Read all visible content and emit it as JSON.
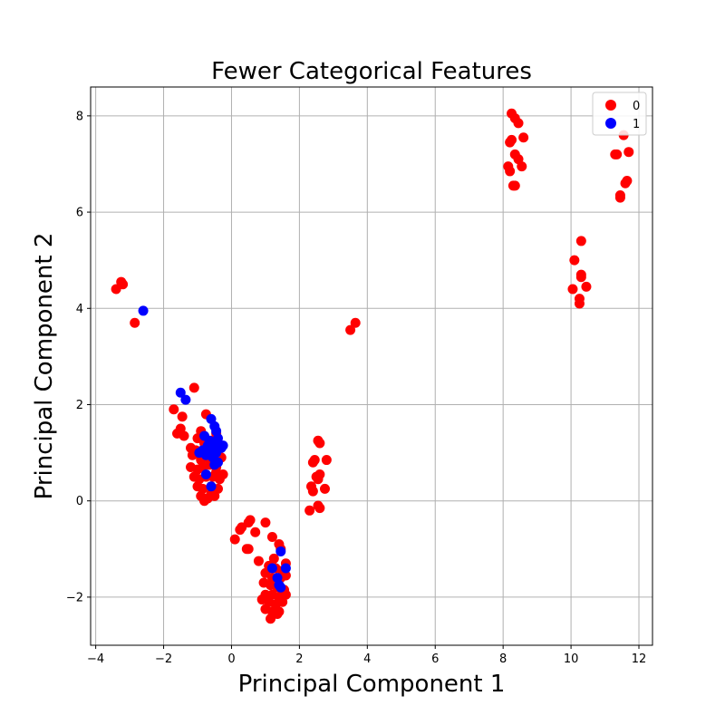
{
  "chart_data": {
    "type": "scatter",
    "title": "Fewer Categorical Features",
    "xlabel": "Principal Component 1",
    "ylabel": "Principal Component 2",
    "xlim": [
      -4.15,
      12.4
    ],
    "ylim": [
      -3.0,
      8.6
    ],
    "xticks": [
      -4,
      -2,
      0,
      2,
      4,
      6,
      8,
      10,
      12
    ],
    "yticks": [
      -2,
      0,
      2,
      4,
      6,
      8
    ],
    "xtick_labels": [
      "−4",
      "−2",
      "0",
      "2",
      "4",
      "6",
      "8",
      "10",
      "12"
    ],
    "ytick_labels": [
      "−2",
      "0",
      "2",
      "4",
      "6",
      "8"
    ],
    "grid": true,
    "legend_position": "top-right",
    "series": [
      {
        "name": "0",
        "color": "#ff0000",
        "points": [
          [
            -3.4,
            4.4
          ],
          [
            -3.25,
            4.55
          ],
          [
            -3.2,
            4.5
          ],
          [
            -2.85,
            3.7
          ],
          [
            3.5,
            3.55
          ],
          [
            3.65,
            3.7
          ],
          [
            8.25,
            8.05
          ],
          [
            8.35,
            7.95
          ],
          [
            8.45,
            7.85
          ],
          [
            8.6,
            7.55
          ],
          [
            8.25,
            7.5
          ],
          [
            8.2,
            7.45
          ],
          [
            8.35,
            7.2
          ],
          [
            8.45,
            7.1
          ],
          [
            8.15,
            6.95
          ],
          [
            8.2,
            6.85
          ],
          [
            8.55,
            6.95
          ],
          [
            8.3,
            6.55
          ],
          [
            8.35,
            6.55
          ],
          [
            11.55,
            7.6
          ],
          [
            11.7,
            7.25
          ],
          [
            11.3,
            7.2
          ],
          [
            11.35,
            7.2
          ],
          [
            11.65,
            6.65
          ],
          [
            11.6,
            6.6
          ],
          [
            11.45,
            6.35
          ],
          [
            11.45,
            6.3
          ],
          [
            10.3,
            5.4
          ],
          [
            10.1,
            5.0
          ],
          [
            10.3,
            4.7
          ],
          [
            10.3,
            4.65
          ],
          [
            10.45,
            4.45
          ],
          [
            10.05,
            4.4
          ],
          [
            10.25,
            4.2
          ],
          [
            10.25,
            4.1
          ],
          [
            -1.1,
            2.35
          ],
          [
            -1.7,
            1.9
          ],
          [
            -1.45,
            1.75
          ],
          [
            -1.5,
            1.5
          ],
          [
            -1.6,
            1.4
          ],
          [
            -1.4,
            1.35
          ],
          [
            -0.75,
            1.8
          ],
          [
            -0.9,
            1.45
          ],
          [
            -1.0,
            1.3
          ],
          [
            -1.2,
            1.1
          ],
          [
            -1.05,
            1.05
          ],
          [
            -0.8,
            1.2
          ],
          [
            -0.6,
            1.25
          ],
          [
            -0.45,
            1.4
          ],
          [
            -0.3,
            1.15
          ],
          [
            -1.15,
            0.95
          ],
          [
            -0.9,
            0.85
          ],
          [
            -0.7,
            0.9
          ],
          [
            -0.5,
            0.95
          ],
          [
            -0.3,
            0.9
          ],
          [
            -1.2,
            0.7
          ],
          [
            -1.0,
            0.65
          ],
          [
            -0.85,
            0.7
          ],
          [
            -0.65,
            0.75
          ],
          [
            -0.45,
            0.7
          ],
          [
            -0.25,
            0.55
          ],
          [
            -1.1,
            0.5
          ],
          [
            -0.95,
            0.45
          ],
          [
            -0.75,
            0.5
          ],
          [
            -0.55,
            0.5
          ],
          [
            -0.35,
            0.45
          ],
          [
            -1.0,
            0.3
          ],
          [
            -0.85,
            0.25
          ],
          [
            -0.6,
            0.3
          ],
          [
            -0.4,
            0.25
          ],
          [
            -0.9,
            0.1
          ],
          [
            -0.7,
            0.05
          ],
          [
            -0.5,
            0.1
          ],
          [
            -0.8,
            0.0
          ],
          [
            -0.6,
            0.15
          ],
          [
            -0.45,
            0.6
          ],
          [
            -0.7,
            1.05
          ],
          [
            2.55,
            1.25
          ],
          [
            2.6,
            1.2
          ],
          [
            2.4,
            0.8
          ],
          [
            2.45,
            0.85
          ],
          [
            2.8,
            0.85
          ],
          [
            2.6,
            0.55
          ],
          [
            2.5,
            0.5
          ],
          [
            2.55,
            0.45
          ],
          [
            2.35,
            0.3
          ],
          [
            2.75,
            0.25
          ],
          [
            2.4,
            0.2
          ],
          [
            2.55,
            -0.1
          ],
          [
            2.6,
            -0.15
          ],
          [
            2.3,
            -0.2
          ],
          [
            0.55,
            -0.4
          ],
          [
            0.5,
            -0.45
          ],
          [
            1.0,
            -0.45
          ],
          [
            0.25,
            -0.6
          ],
          [
            0.3,
            -0.55
          ],
          [
            0.7,
            -0.65
          ],
          [
            0.1,
            -0.8
          ],
          [
            0.5,
            -1.0
          ],
          [
            0.45,
            -1.0
          ],
          [
            1.2,
            -0.75
          ],
          [
            1.4,
            -0.9
          ],
          [
            1.45,
            -1.0
          ],
          [
            0.8,
            -1.25
          ],
          [
            1.25,
            -1.2
          ],
          [
            1.6,
            -1.3
          ],
          [
            1.1,
            -1.35
          ],
          [
            1.3,
            -1.4
          ],
          [
            1.5,
            -1.45
          ],
          [
            1.0,
            -1.5
          ],
          [
            1.2,
            -1.6
          ],
          [
            1.45,
            -1.6
          ],
          [
            1.6,
            -1.55
          ],
          [
            0.95,
            -1.7
          ],
          [
            1.15,
            -1.75
          ],
          [
            1.35,
            -1.8
          ],
          [
            1.55,
            -1.85
          ],
          [
            1.0,
            -1.95
          ],
          [
            1.2,
            -1.95
          ],
          [
            1.4,
            -2.0
          ],
          [
            1.6,
            -1.95
          ],
          [
            0.9,
            -2.05
          ],
          [
            1.1,
            -2.1
          ],
          [
            1.3,
            -2.15
          ],
          [
            1.5,
            -2.1
          ],
          [
            1.0,
            -2.25
          ],
          [
            1.2,
            -2.3
          ],
          [
            1.4,
            -2.3
          ],
          [
            1.15,
            -2.45
          ],
          [
            1.35,
            -2.35
          ]
        ]
      },
      {
        "name": "1",
        "color": "#0000ff",
        "points": [
          [
            -2.6,
            3.95
          ],
          [
            -1.5,
            2.25
          ],
          [
            -1.35,
            2.1
          ],
          [
            -0.6,
            1.7
          ],
          [
            -0.5,
            1.55
          ],
          [
            -0.45,
            1.45
          ],
          [
            -0.8,
            1.35
          ],
          [
            -0.65,
            1.25
          ],
          [
            -0.4,
            1.3
          ],
          [
            -0.7,
            1.15
          ],
          [
            -0.5,
            1.15
          ],
          [
            -0.3,
            1.1
          ],
          [
            -0.25,
            1.15
          ],
          [
            -0.95,
            1.0
          ],
          [
            -0.85,
            1.05
          ],
          [
            -0.6,
            1.05
          ],
          [
            -0.45,
            1.0
          ],
          [
            -0.75,
            0.95
          ],
          [
            -0.55,
            0.9
          ],
          [
            -0.5,
            0.75
          ],
          [
            -0.4,
            0.8
          ],
          [
            -0.75,
            0.55
          ],
          [
            -0.6,
            0.3
          ],
          [
            1.45,
            -1.05
          ],
          [
            1.2,
            -1.4
          ],
          [
            1.6,
            -1.4
          ],
          [
            1.35,
            -1.6
          ],
          [
            1.4,
            -1.75
          ],
          [
            1.45,
            -1.8
          ]
        ]
      }
    ]
  }
}
